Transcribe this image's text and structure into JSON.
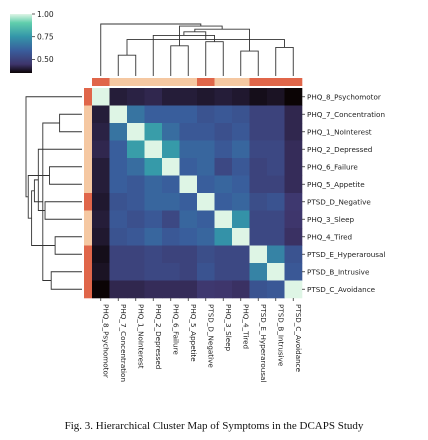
{
  "caption": "Fig. 3.  Hierarchical Cluster Map of Symptoms in the DCAPS Study",
  "chart_data": {
    "type": "heatmap",
    "labels": [
      "PHQ_8_Psychomotor",
      "PHQ_7_Concentration",
      "PHQ_1_NoInterest",
      "PHQ_2_Depressed",
      "PHQ_6_Failure",
      "PHQ_5_Appetite",
      "PTSD_D_Negative",
      "PHQ_3_Sleep",
      "PHQ_4_Tired",
      "PTSD_E_Hyperarousal",
      "PTSD_B_Intrusive",
      "PTSD_C_Avoidance"
    ],
    "matrix": [
      [
        1.0,
        0.4,
        0.41,
        0.42,
        0.4,
        0.4,
        0.39,
        0.4,
        0.39,
        0.37,
        0.38,
        0.35
      ],
      [
        0.4,
        1.0,
        0.66,
        0.6,
        0.6,
        0.6,
        0.56,
        0.58,
        0.56,
        0.5,
        0.5,
        0.42
      ],
      [
        0.41,
        0.66,
        1.0,
        0.77,
        0.64,
        0.58,
        0.58,
        0.55,
        0.58,
        0.5,
        0.5,
        0.42
      ],
      [
        0.42,
        0.6,
        0.77,
        1.0,
        0.76,
        0.62,
        0.62,
        0.58,
        0.62,
        0.52,
        0.52,
        0.43
      ],
      [
        0.4,
        0.6,
        0.64,
        0.76,
        1.0,
        0.6,
        0.62,
        0.52,
        0.58,
        0.5,
        0.52,
        0.43
      ],
      [
        0.4,
        0.6,
        0.58,
        0.62,
        0.6,
        1.0,
        0.6,
        0.62,
        0.6,
        0.5,
        0.5,
        0.43
      ],
      [
        0.39,
        0.56,
        0.58,
        0.62,
        0.62,
        0.6,
        1.0,
        0.6,
        0.62,
        0.54,
        0.56,
        0.46
      ],
      [
        0.4,
        0.58,
        0.55,
        0.58,
        0.52,
        0.62,
        0.6,
        1.0,
        0.74,
        0.52,
        0.52,
        0.45
      ],
      [
        0.39,
        0.56,
        0.58,
        0.62,
        0.58,
        0.6,
        0.62,
        0.74,
        1.0,
        0.52,
        0.52,
        0.44
      ],
      [
        0.37,
        0.5,
        0.5,
        0.52,
        0.5,
        0.5,
        0.54,
        0.52,
        0.52,
        1.0,
        0.7,
        0.56
      ],
      [
        0.38,
        0.5,
        0.5,
        0.52,
        0.52,
        0.5,
        0.56,
        0.52,
        0.52,
        0.7,
        1.0,
        0.58
      ],
      [
        0.35,
        0.42,
        0.42,
        0.43,
        0.43,
        0.43,
        0.46,
        0.45,
        0.44,
        0.56,
        0.58,
        1.0
      ]
    ],
    "group_colors": [
      "#e0664a",
      "#f5c8a2",
      "#f5c8a2",
      "#f5c8a2",
      "#f5c8a2",
      "#f5c8a2",
      "#e0664a",
      "#f5c8a2",
      "#f5c8a2",
      "#e0664a",
      "#e0664a",
      "#e0664a"
    ],
    "colorbar": {
      "ticks": [
        1.0,
        0.75,
        0.5
      ],
      "tick_labels": [
        "1.00",
        "0.75",
        "0.50"
      ],
      "range": [
        0.35,
        1.0
      ]
    },
    "colormap": "mako",
    "dendrogram": {
      "merges": [
        [
          1,
          2,
          0.4
        ],
        [
          8,
          9,
          0.48
        ],
        [
          10,
          11,
          0.55
        ],
        [
          4,
          5,
          0.58
        ],
        [
          6,
          7,
          0.66
        ],
        [
          12,
          14,
          0.7
        ],
        [
          3,
          16,
          0.78
        ],
        [
          18,
          17,
          0.85
        ],
        [
          19,
          13,
          0.9
        ],
        [
          20,
          15,
          0.96
        ],
        [
          0,
          21,
          1.0
        ]
      ]
    }
  }
}
